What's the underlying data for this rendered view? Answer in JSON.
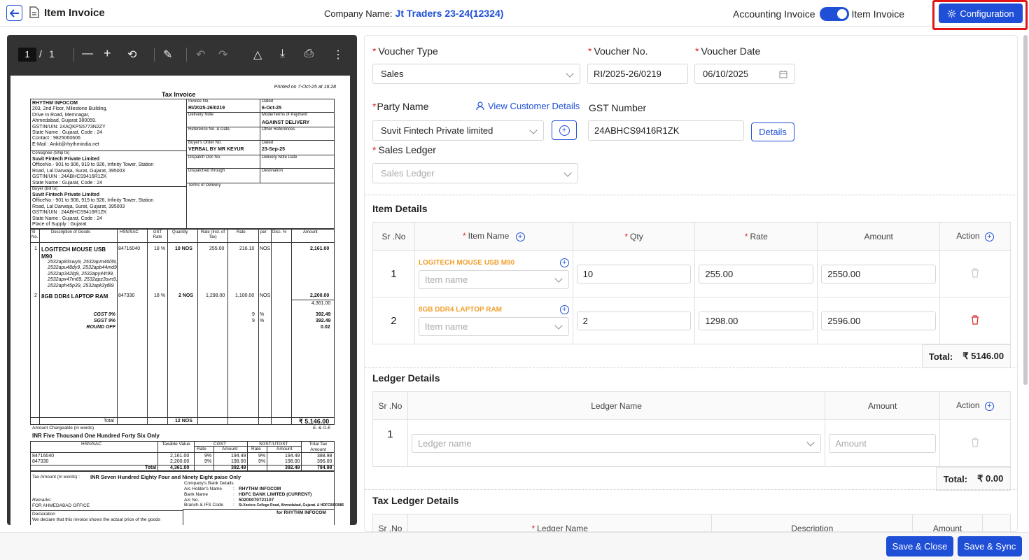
{
  "header": {
    "title": "Item Invoice",
    "company_label": "Company Name:",
    "company_name": "Jt Traders 23-24(12324)",
    "toggle_left": "Accounting Invoice",
    "toggle_right": "Item Invoice",
    "config_label": "Configuration",
    "marker": "A",
    "accent": "#1f4fd6",
    "highlight": "#e01616"
  },
  "pdf": {
    "page_current": "1",
    "page_sep": "/",
    "page_total": "1",
    "printed_on": "Printed on 7-Oct-25 at 16:28",
    "doc_title": "Tax Invoice",
    "seller": [
      "RHYTHM INFOCOM",
      "203, 2nd Floor, Milestone Building,",
      "Drive In Road, Memnagar,",
      "Ahmedabad, Gujarat 380059.",
      "GSTIN/UIN: 24AQKPS5773N2ZY",
      "State Name :  Gujarat, Code : 24",
      "Contact : 9825060606",
      "E-Mail : Ankit@rhythmindia.net"
    ],
    "invoice_no_label": "Invoice No.",
    "invoice_no": "RI/2025-26/0219",
    "dated_label": "Dated",
    "dated": "6-Oct-25",
    "delivery_note": "Delivery Note",
    "mode_terms": "Mode/Terms of Payment",
    "against_delivery": "AGAINST DELIVERY",
    "ref_no": "Reference No. & Date.",
    "other_ref": "Other References",
    "buyer_order": "Buyer's Order No.",
    "buyer_order_val": "VERBAL BY MR KEYUR",
    "dated2_label": "Dated",
    "dated2": "23-Sep-25",
    "dispatch_doc": "Dispatch Doc No.",
    "delivery_note_date": "Delivery Note Date",
    "dispatched_through": "Dispatched through",
    "destination": "Destination",
    "terms_delivery": "Terms of Delivery",
    "consignee_label": "Consignee (Ship to)",
    "consignee": [
      "Suvit Fintech Private Limited",
      "OfficeNo.- 901 to 906, 919 to 926, Infinity Tower, Station",
      "Road, Lal Darwaja, Surat, Gujarat, 395003",
      "GSTIN/UIN        :  24ABHCS9416R1ZK",
      "State Name       :  Gujarat, Code : 24"
    ],
    "buyer_label": "Buyer (Bill to)",
    "buyer": [
      "Suvit Fintech Private Limited",
      "OfficeNo.- 901 to 906, 919 to 926, Infinity Tower, Station",
      "Road, Lal Darwaja, Surat, Gujarat, 395003",
      "GSTIN/UIN        :  24ABHCS9416R1ZK",
      "State Name       :  Gujarat, Code : 24",
      "Place of Supply  :  Gujarat"
    ],
    "cols": [
      "Sl No.",
      "Description of Goods",
      "HSN/SAC",
      "GST Rate",
      "Quantity",
      "Rate (Incl. of Tax)",
      "Rate",
      "per",
      "Disc. %",
      "Amount"
    ],
    "rows": [
      {
        "sl": "1",
        "desc": "LOGITECH MOUSE USB M90",
        "hsn": "84716040",
        "gst": "18 %",
        "qty": "10 NOS",
        "rate_incl": "255.00",
        "rate": "216.10",
        "per": "NOS",
        "amount": "2,161.00"
      },
      {
        "sl": "2",
        "desc": "8GB DDR4 LAPTOP RAM",
        "hsn": "847330",
        "gst": "18 %",
        "qty": "2 NOS",
        "rate_incl": "1,298.00",
        "rate": "1,100.00",
        "per": "NOS",
        "amount": "2,200.00"
      }
    ],
    "serials": [
      "2532ap83swy9,  2532apm46l39,",
      "2532apu48dy9,  2532apb44md9,",
      "2532ap342lg9,  2532apy44r99,",
      "2532apx47m69,  2532apz3svn9,",
      "2532aph45p39,  2532apk3yf89"
    ],
    "subtotal": "4,361.00",
    "cgst": "CGST 9%",
    "sgst": "SGST 9%",
    "round_off": "ROUND OFF",
    "tax_rate": "9",
    "pct": "%",
    "cgst_amt": "392.49",
    "sgst_amt": "392.49",
    "round_amt": "0.02",
    "total_label": "Total",
    "total_qty": "12 NOS",
    "total_amt": "₹ 5,146.00",
    "eoe": "E. & O.E",
    "amount_words_label": "Amount Chargeable (in words)",
    "amount_words": "INR Five Thousand One Hundred Forty Six Only",
    "tax_head": [
      "HSN/SAC",
      "Taxable Value",
      "CGST",
      "SGST/UTGST",
      "Total Tax Amount"
    ],
    "tax_sub": [
      "Rate",
      "Amount",
      "Rate",
      "Amount"
    ],
    "tax_rows": [
      [
        "84716040",
        "2,161.00",
        "9%",
        "194.49",
        "9%",
        "194.49",
        "388.98"
      ],
      [
        "847330",
        "2,200.00",
        "9%",
        "198.00",
        "9%",
        "198.00",
        "396.00"
      ]
    ],
    "tax_total": [
      "Total",
      "4,361.00",
      "392.49",
      "392.49",
      "784.98"
    ],
    "tax_words_label": "Tax Amount (in words)  :",
    "tax_words": "INR Seven Hundred Eighty Four and Ninety Eight paise Only",
    "bank_title": "Company's Bank Details",
    "bank": [
      [
        "A/c Holder's Name",
        ":",
        "RHYTHM INFOCOM"
      ],
      [
        "Bank Name",
        ":",
        "HDFC BANK LIMITED (CURRENT)"
      ],
      [
        "A/c No.",
        ":",
        "50200070721107"
      ],
      [
        "Branch & IFS Code",
        ":",
        "St.Xaviers College Road, Ahmedabad, Gujarat. & HDFC0003985"
      ]
    ],
    "remarks_label": "Remarks:",
    "remarks": "FOR AHMEDABAD OFFICE",
    "declaration_label": "Declaration",
    "declaration": "We declare that this invoice shows the actual price of the goods",
    "for_company": "for RHYTHM INFOCOM"
  },
  "form": {
    "voucher_type_label": "Voucher Type",
    "voucher_type": "Sales",
    "voucher_no_label": "Voucher No.",
    "voucher_no": "RI/2025-26/0219",
    "voucher_date_label": "Voucher Date",
    "voucher_date": "06/10/2025",
    "party_label": "Party Name",
    "view_customer": "View Customer Details",
    "party_value": "Suvit Fintech Private limited",
    "gst_label": "GST Number",
    "gst_value": "24ABHCS9416R1ZK",
    "details_btn": "Details",
    "sales_ledger_label": "Sales Ledger",
    "sales_ledger_placeholder": "Sales Ledger"
  },
  "items": {
    "title": "Item Details",
    "cols": {
      "sr": "Sr .No",
      "item": "Item Name",
      "qty": "Qty",
      "rate": "Rate",
      "amount": "Amount",
      "action": "Action"
    },
    "item_placeholder": "Item name",
    "rows": [
      {
        "sr": "1",
        "name": "LOGITECH MOUSE USB M90",
        "qty": "10",
        "rate": "255.00",
        "amount": "2550.00"
      },
      {
        "sr": "2",
        "name": "8GB DDR4 LAPTOP RAM",
        "qty": "2",
        "rate": "1298.00",
        "amount": "2596.00"
      }
    ],
    "total_label": "Total:",
    "total_value": "₹ 5146.00"
  },
  "ledger": {
    "title": "Ledger Details",
    "cols": {
      "sr": "Sr .No",
      "name": "Ledger Name",
      "amount": "Amount",
      "action": "Action"
    },
    "row_sr": "1",
    "name_placeholder": "Ledger name",
    "amount_placeholder": "Amount",
    "total_label": "Total:",
    "total_value": "₹ 0.00"
  },
  "tax_ledger": {
    "title": "Tax Ledger Details",
    "cols": {
      "sr": "Sr .No",
      "name": "Ledger Name",
      "desc": "Description",
      "amount": "Amount"
    }
  },
  "footer": {
    "save_close": "Save & Close",
    "save_sync": "Save & Sync"
  }
}
